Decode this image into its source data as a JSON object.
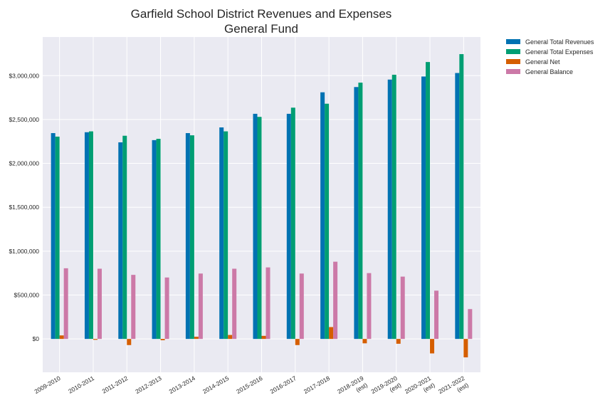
{
  "chart_data": {
    "type": "bar",
    "title_lines": [
      "Garfield School District Revenues and Expenses",
      "General Fund"
    ],
    "xlabel": "",
    "ylabel": "",
    "categories": [
      [
        "2009-2010"
      ],
      [
        "2010-2011"
      ],
      [
        "2011-2012"
      ],
      [
        "2012-2013"
      ],
      [
        "2013-2014"
      ],
      [
        "2014-2015"
      ],
      [
        "2015-2016"
      ],
      [
        "2016-2017"
      ],
      [
        "2017-2018"
      ],
      [
        "2018-2019",
        "(est)"
      ],
      [
        "2019-2020",
        "(est)"
      ],
      [
        "2020-2021",
        "(est)"
      ],
      [
        "2021-2022",
        "(est)"
      ]
    ],
    "series": [
      {
        "name": "General Total Revenues",
        "color": "#0072b2",
        "values": [
          2345000,
          2355000,
          2240000,
          2265000,
          2345000,
          2410000,
          2565000,
          2565000,
          2810000,
          2870000,
          2955000,
          2990000,
          3030000
        ]
      },
      {
        "name": "General Total Expenses",
        "color": "#009e73",
        "values": [
          2305000,
          2365000,
          2315000,
          2280000,
          2320000,
          2365000,
          2530000,
          2635000,
          2680000,
          2920000,
          3010000,
          3155000,
          3245000
        ]
      },
      {
        "name": "General Net",
        "color": "#d55e00",
        "values": [
          40000,
          -10000,
          -70000,
          -15000,
          25000,
          45000,
          35000,
          -70000,
          135000,
          -50000,
          -55000,
          -165000,
          -210000
        ]
      },
      {
        "name": "General Balance",
        "color": "#cc79a7",
        "values": [
          805000,
          800000,
          730000,
          700000,
          745000,
          800000,
          815000,
          745000,
          880000,
          750000,
          710000,
          550000,
          340000
        ]
      }
    ],
    "y_ticks": [
      0,
      500000,
      1000000,
      1500000,
      2000000,
      2500000,
      3000000
    ],
    "y_tick_labels": [
      "$0",
      "$500,000",
      "$1,000,000",
      "$1,500,000",
      "$2,000,000",
      "$2,500,000",
      "$3,000,000"
    ],
    "ylim": [
      -380000,
      3440000
    ],
    "grid": true,
    "legend_position": "outside-top-right",
    "plot_background": "#eaeaf2"
  }
}
